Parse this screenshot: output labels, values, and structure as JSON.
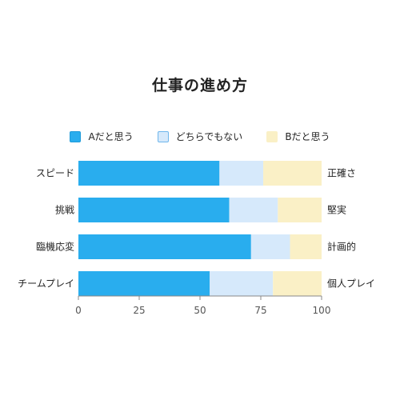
{
  "chart_data": {
    "type": "bar",
    "orientation": "horizontal",
    "stacked": true,
    "title": "仕事の進め方",
    "categories": [
      "スピード",
      "挑戦",
      "臨機応変",
      "チームプレイ"
    ],
    "right_labels": [
      "正確さ",
      "堅実",
      "計画的",
      "個人プレイ"
    ],
    "series": [
      {
        "name": "Aだと思う",
        "values": [
          58,
          62,
          71,
          54
        ]
      },
      {
        "name": "どちらでもない",
        "values": [
          18,
          20,
          16,
          26
        ]
      },
      {
        "name": "Bだと思う",
        "values": [
          24,
          18,
          13,
          20
        ]
      }
    ],
    "xlim": [
      0,
      100
    ],
    "xticks": [
      0,
      25,
      50,
      75,
      100
    ],
    "grid": false,
    "legend_position": "top",
    "colors": {
      "Aだと思う": "#29adee",
      "どちらでもない": "#d6e9fb",
      "Bだと思う": "#faf0c6"
    },
    "legend_borders": {
      "Aだと思う": "#1e9ad9",
      "どちらでもない": "#6fb6ec",
      "Bだと思う": "#faf0c6"
    }
  }
}
